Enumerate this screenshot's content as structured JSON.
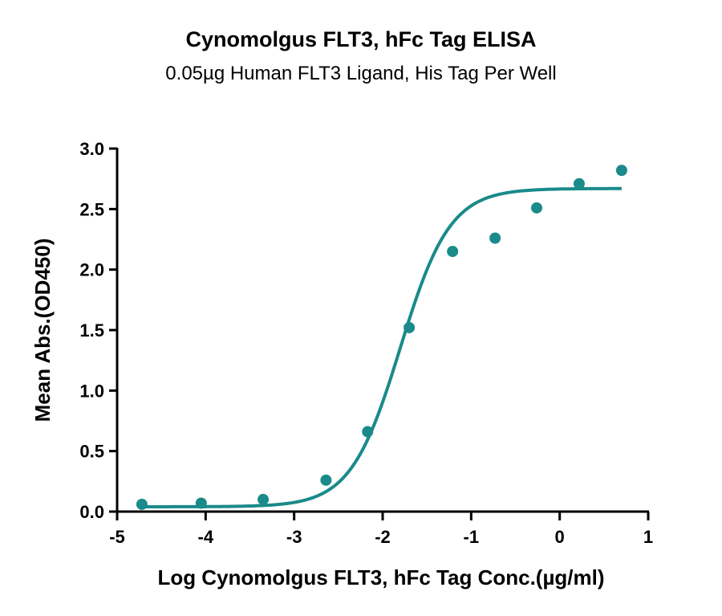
{
  "chart_data": {
    "type": "scatter",
    "title": "Cynomolgus FLT3, hFc Tag ELISA",
    "subtitle": "0.05µg Human FLT3 Ligand, His Tag Per Well",
    "xlabel": "Log Cynomolgus FLT3, hFc Tag Conc.(µg/ml)",
    "ylabel": "Mean Abs.(OD450)",
    "xlim": [
      -5,
      1
    ],
    "ylim": [
      0,
      3.0
    ],
    "x_ticks": [
      -5,
      -4,
      -3,
      -2,
      -1,
      0,
      1
    ],
    "x_tick_labels": [
      "-5",
      "-4",
      "-3",
      "-2",
      "-1",
      "0",
      "1"
    ],
    "y_ticks": [
      0,
      0.5,
      1.0,
      1.5,
      2.0,
      2.5,
      3.0
    ],
    "y_tick_labels": [
      "0.0",
      "0.5",
      "1.0",
      "1.5",
      "2.0",
      "2.5",
      "3.0"
    ],
    "grid": false,
    "color": "#1a8a8a",
    "series": [
      {
        "x": [
          -4.72,
          -4.05,
          -3.35,
          -2.64,
          -2.17,
          -1.7,
          -1.21,
          -0.73,
          -0.26,
          0.22,
          0.7
        ],
        "y": [
          0.06,
          0.07,
          0.1,
          0.26,
          0.66,
          1.52,
          2.15,
          2.26,
          2.51,
          2.71,
          2.82
        ]
      }
    ],
    "fit": {
      "model": "4PL",
      "bottom": 0.04,
      "top": 2.67,
      "log_ec50": -1.8,
      "hill": 1.55
    }
  }
}
